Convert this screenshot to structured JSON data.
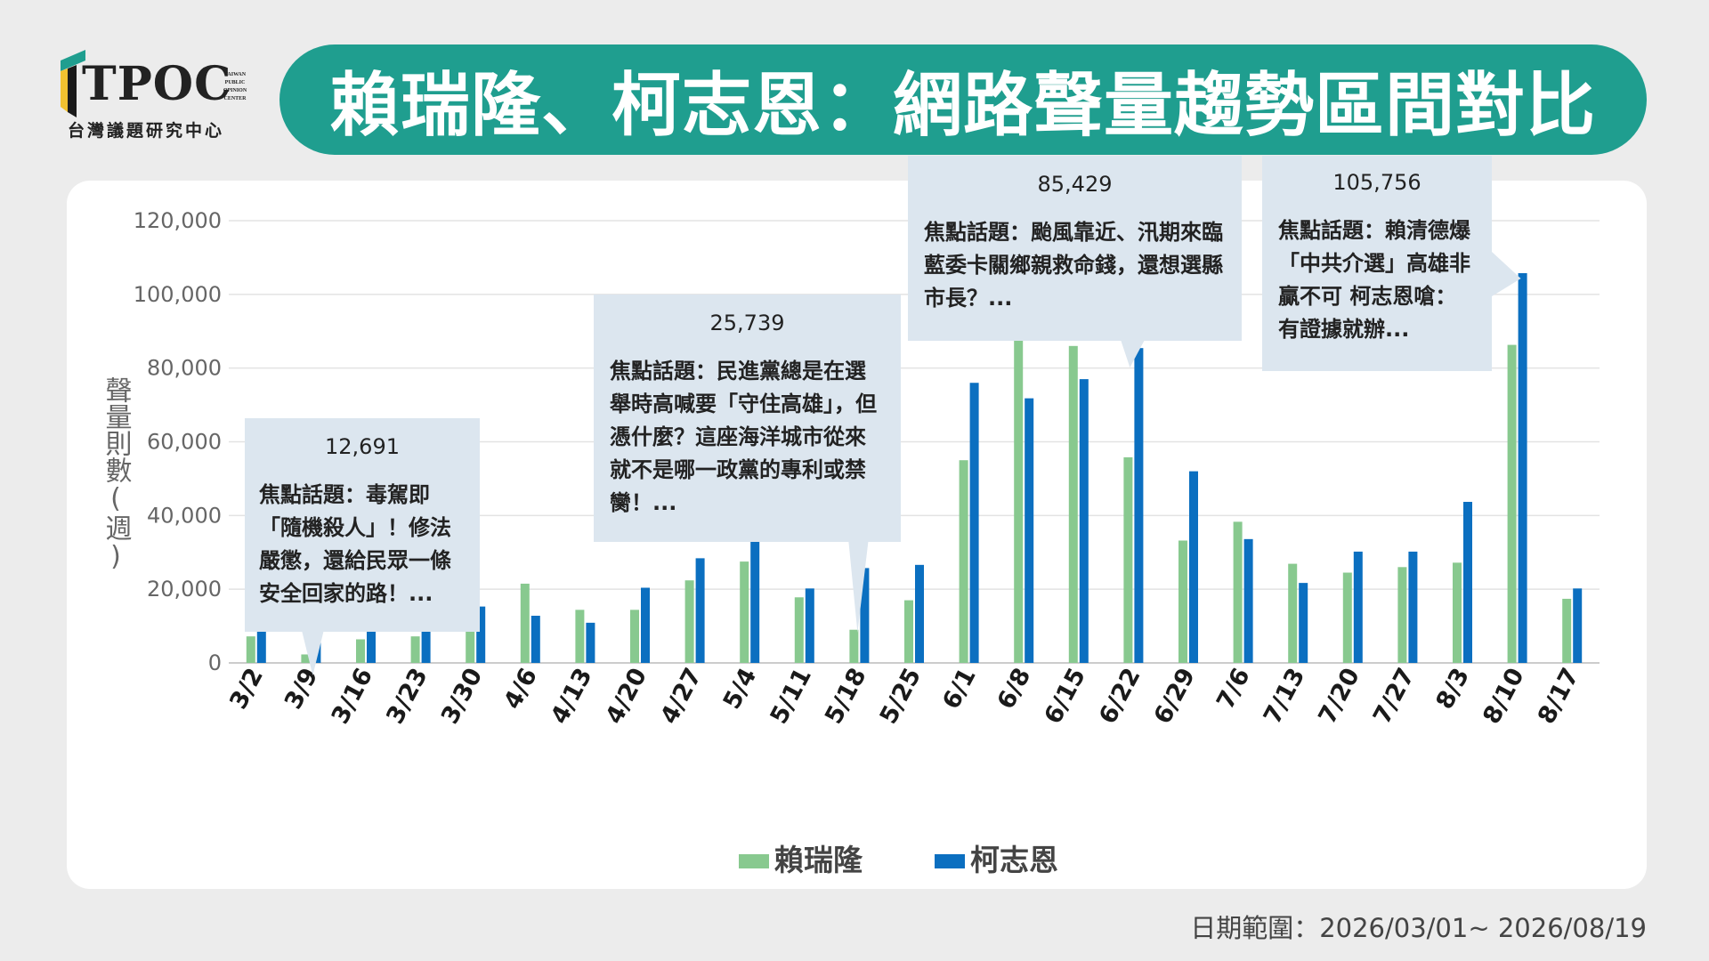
{
  "header": {
    "title": "賴瑞隆、柯志恩：網路聲量趨勢區間對比",
    "logo_text": "TPOC",
    "logo_en": [
      "TAIWAN",
      "PUBLIC",
      "OPINION",
      "CENTER"
    ],
    "logo_zh": "台灣議題研究中心"
  },
  "colors": {
    "title_bg": "#1f9e8f",
    "lai": "#88c98f",
    "ko": "#0b6fc0",
    "callout_bg": "#dce6ef"
  },
  "chart_data": {
    "type": "bar",
    "ylabel": "聲量則數(週)",
    "ylim": [
      0,
      120000
    ],
    "yticks": [
      "0",
      "20,000",
      "40,000",
      "60,000",
      "80,000",
      "100,000",
      "120,000"
    ],
    "categories": [
      "3/2",
      "3/9",
      "3/16",
      "3/23",
      "3/30",
      "4/6",
      "4/13",
      "4/20",
      "4/27",
      "5/4",
      "5/11",
      "5/18",
      "5/25",
      "6/1",
      "6/8",
      "6/15",
      "6/22",
      "6/29",
      "7/6",
      "7/13",
      "7/20",
      "7/27",
      "8/3",
      "8/10",
      "8/17"
    ],
    "series": [
      {
        "name": "賴瑞隆",
        "color": "#88c98f",
        "values": [
          7200,
          2300,
          6400,
          7200,
          9900,
          21500,
          14400,
          14400,
          22400,
          27500,
          17800,
          9000,
          17000,
          55000,
          91000,
          86000,
          55800,
          33200,
          38300,
          26900,
          24500,
          26000,
          27200,
          86300,
          17400
        ]
      },
      {
        "name": "柯志恩",
        "color": "#0b6fc0",
        "values": [
          10100,
          12691,
          15000,
          23500,
          15300,
          12800,
          10900,
          20400,
          28400,
          41400,
          20200,
          25739,
          26600,
          76000,
          71800,
          77000,
          85429,
          52000,
          33600,
          21700,
          30200,
          30200,
          43700,
          105756,
          20200
        ]
      }
    ],
    "legend": "bottom-center",
    "grid": true,
    "callouts": [
      {
        "value": "12,691",
        "text": "焦點話題：毒駕即「隨機殺人」！修法嚴懲，還給民眾一條安全回家的路！...",
        "category": "3/9"
      },
      {
        "value": "25,739",
        "text": "焦點話題：民進黨總是在選舉時高喊要「守住高雄」，但憑什麼？這座海洋城市從來就不是哪一政黨的專利或禁臠！...",
        "category": "5/18"
      },
      {
        "value": "85,429",
        "text": "焦點話題：颱風靠近、汛期來臨 藍委卡關鄉親救命錢，還想選縣市長？...",
        "category": "6/22"
      },
      {
        "value": "105,756",
        "text": "焦點話題：賴清德爆「中共介選」高雄非贏不可 柯志恩嗆：有證據就辦...",
        "category": "8/10"
      }
    ]
  },
  "footer": {
    "date_range": "日期範圍：2026/03/01~ 2026/08/19"
  }
}
